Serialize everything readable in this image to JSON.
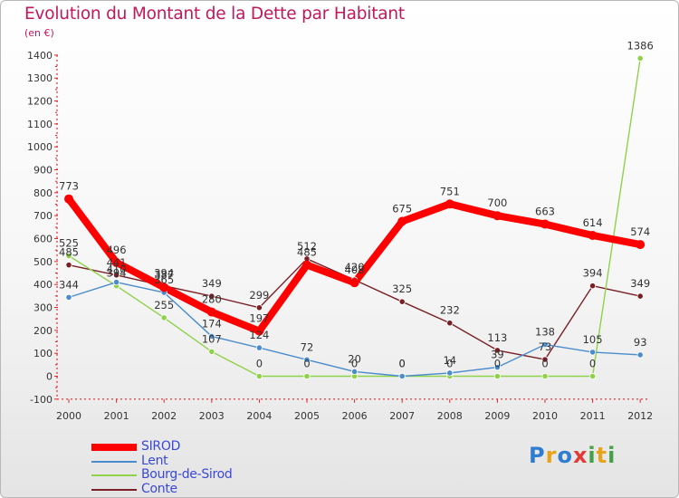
{
  "title": "Evolution du Montant de la Dette par Habitant",
  "unit": "(en €)",
  "logo": "Proxiti",
  "chart_data": {
    "type": "line",
    "categories": [
      "2000",
      "2001",
      "2002",
      "2003",
      "2004",
      "2005",
      "2006",
      "2007",
      "2008",
      "2009",
      "2010",
      "2011",
      "2012"
    ],
    "ylim": [
      -100,
      1400
    ],
    "yticks": [
      -100,
      0,
      100,
      200,
      300,
      400,
      500,
      600,
      700,
      800,
      900,
      1000,
      1100,
      1200,
      1300,
      1400
    ],
    "grid": false,
    "legend_position": "bottom-left",
    "series": [
      {
        "name": "SIROD",
        "color": "#ff0000",
        "emphasis": true,
        "values": [
          773,
          496,
          387,
          280,
          197,
          485,
          408,
          675,
          751,
          700,
          663,
          614,
          574
        ],
        "labels": [
          "773",
          "496",
          "387",
          "280",
          "197",
          "485",
          "408",
          "675",
          "751",
          "700",
          "663",
          "614",
          "574"
        ]
      },
      {
        "name": "Lent",
        "color": "#4a8ccc",
        "values": [
          344,
          410,
          365,
          174,
          124,
          72,
          20,
          0,
          14,
          39,
          138,
          105,
          93
        ],
        "labels": [
          "344",
          "410",
          "365",
          "174",
          "124",
          "72",
          "20",
          "0",
          "14",
          "39",
          "138",
          "105",
          "93"
        ]
      },
      {
        "name": "Bourg-de-Sirod",
        "color": "#8fd24a",
        "values": [
          525,
          394,
          255,
          107,
          0,
          0,
          0,
          0,
          0,
          0,
          0,
          0,
          1386
        ],
        "labels": [
          "525",
          "394",
          "255",
          "107",
          "0",
          "0",
          "0",
          "0",
          "0",
          "0",
          "0",
          "0",
          "1386"
        ]
      },
      {
        "name": "Conte",
        "color": "#7a1f26",
        "values": [
          485,
          441,
          394,
          349,
          299,
          512,
          420,
          325,
          232,
          113,
          73,
          394,
          349
        ],
        "labels": [
          "485",
          "441",
          "394",
          "349",
          "299",
          "512",
          "420",
          "325",
          "232",
          "113",
          "73",
          "394",
          "349"
        ]
      }
    ]
  }
}
